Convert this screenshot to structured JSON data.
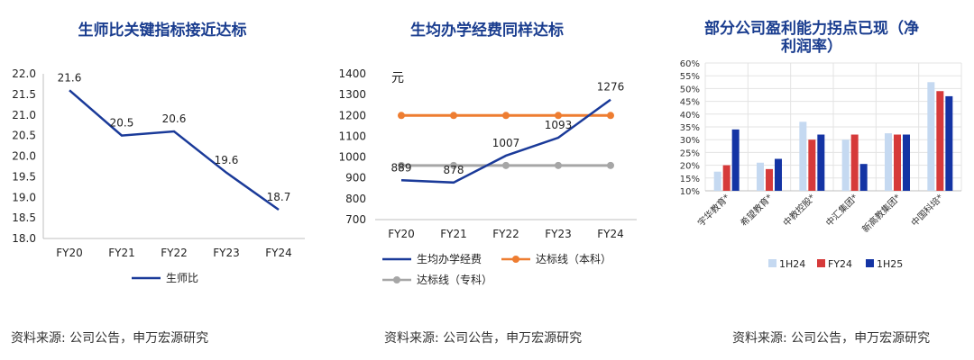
{
  "sources": {
    "c1": "资料来源: 公司公告，申万宏源研究",
    "c2": "资料来源: 公司公告，申万宏源研究",
    "c3": "资料来源: 公司公告，申万宏源研究"
  },
  "chart_data": [
    {
      "type": "line",
      "title": "生师比关键指标接近达标",
      "categories": [
        "FY20",
        "FY21",
        "FY22",
        "FY23",
        "FY24"
      ],
      "series": [
        {
          "name": "生师比",
          "values": [
            21.6,
            20.5,
            20.6,
            19.6,
            18.7
          ],
          "color": "#1a3a99"
        }
      ],
      "ylim": [
        18.0,
        22.0
      ],
      "yticks": [
        "22.0",
        "21.5",
        "21.0",
        "20.5",
        "20.0",
        "19.5",
        "19.0",
        "18.5",
        "18.0"
      ],
      "data_labels": [
        "21.6",
        "20.5",
        "20.6",
        "19.6",
        "18.7"
      ],
      "legend": "bottom",
      "grid": false
    },
    {
      "type": "line",
      "title": "生均办学经费同样达标",
      "unit": "元",
      "categories": [
        "FY20",
        "FY21",
        "FY22",
        "FY23",
        "FY24"
      ],
      "series": [
        {
          "name": "生均办学经费",
          "values": [
            889,
            878,
            1007,
            1093,
            1276
          ],
          "color": "#1a3a99"
        },
        {
          "name": "达标线（本科）",
          "values": [
            1200,
            1200,
            1200,
            1200,
            1200
          ],
          "color": "#ee7d31"
        },
        {
          "name": "达标线（专科）",
          "values": [
            960,
            960,
            960,
            960,
            960
          ],
          "color": "#a6a6a6"
        }
      ],
      "ylim": [
        700,
        1400
      ],
      "yticks": [
        "1400",
        "1300",
        "1200",
        "1100",
        "1000",
        "900",
        "800",
        "700"
      ],
      "data_labels": [
        "889",
        "878",
        "1007",
        "1093",
        "1276"
      ],
      "legend": "bottom",
      "grid": false
    },
    {
      "type": "bar",
      "title": "部分公司盈利能力拐点已现（净利润率）",
      "title_lines": [
        "部分公司盈利能力拐点已现（净",
        "利润率）"
      ],
      "categories": [
        "宇华教育*",
        "希望教育*",
        "中教控股*",
        "中汇集团*",
        "新高教集团*",
        "中国科培*"
      ],
      "series": [
        {
          "name": "1H24",
          "values": [
            17.5,
            21,
            37,
            30,
            32.5,
            52.5
          ],
          "color": "#c5d9f1"
        },
        {
          "name": "FY24",
          "values": [
            20,
            18.5,
            30,
            32,
            32,
            49
          ],
          "color": "#d63a3a"
        },
        {
          "name": "1H25",
          "values": [
            34,
            22.5,
            32,
            20.5,
            32,
            47
          ],
          "color": "#1434a4"
        }
      ],
      "ylim": [
        10,
        60
      ],
      "yticks": [
        "60%",
        "55%",
        "50%",
        "45%",
        "40%",
        "35%",
        "30%",
        "25%",
        "20%",
        "15%",
        "10%"
      ],
      "legend": "bottom",
      "grid": true
    }
  ]
}
